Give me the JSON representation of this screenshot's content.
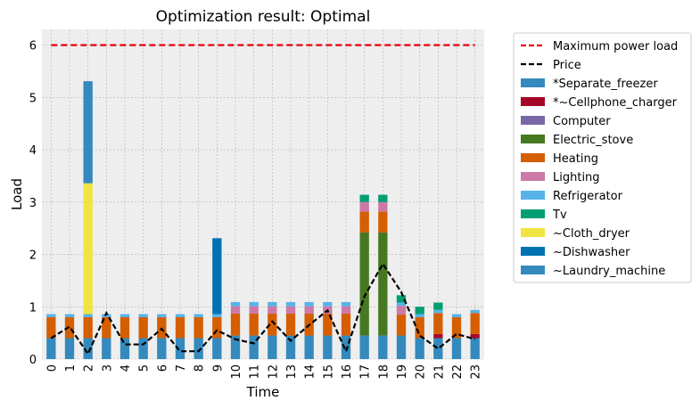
{
  "chart_data": {
    "type": "bar",
    "stacked": true,
    "title": "Optimization result: Optimal",
    "xlabel": "Time",
    "ylabel": "Load",
    "ylim": [
      0,
      6.3
    ],
    "yticks": [
      0,
      1,
      2,
      3,
      4,
      5,
      6
    ],
    "grid": true,
    "legend_position": "outside-right",
    "categories": [
      "0",
      "1",
      "2",
      "3",
      "4",
      "5",
      "6",
      "7",
      "8",
      "9",
      "10",
      "11",
      "12",
      "13",
      "14",
      "15",
      "16",
      "17",
      "18",
      "19",
      "20",
      "21",
      "22",
      "23"
    ],
    "series": [
      {
        "name": "*Separate_freezer",
        "color": "#348abd",
        "values": [
          0.4,
          0.4,
          0.4,
          0.4,
          0.4,
          0.4,
          0.4,
          0.4,
          0.4,
          0.4,
          0.45,
          0.45,
          0.45,
          0.45,
          0.45,
          0.45,
          0.45,
          0.45,
          0.45,
          0.45,
          0.4,
          0.4,
          0.4,
          0.4
        ]
      },
      {
        "name": "*~Cellphone_charger",
        "color": "#a60628",
        "values": [
          0,
          0,
          0,
          0,
          0,
          0,
          0,
          0,
          0,
          0,
          0,
          0,
          0,
          0,
          0,
          0,
          0,
          0,
          0,
          0,
          0,
          0.08,
          0,
          0.08
        ]
      },
      {
        "name": "Computer",
        "color": "#7a68a6",
        "values": [
          0,
          0,
          0,
          0,
          0,
          0,
          0,
          0,
          0,
          0,
          0,
          0,
          0,
          0,
          0,
          0,
          0,
          0,
          0,
          0,
          0,
          0,
          0,
          0
        ]
      },
      {
        "name": "Electric_stove",
        "color": "#467821",
        "values": [
          0,
          0,
          0,
          0,
          0,
          0,
          0,
          0,
          0,
          0,
          0,
          0,
          0,
          0,
          0,
          0,
          0,
          1.97,
          1.97,
          0,
          0,
          0,
          0,
          0
        ]
      },
      {
        "name": "Heating",
        "color": "#d55e00",
        "values": [
          0.4,
          0.4,
          0.4,
          0.4,
          0.4,
          0.4,
          0.4,
          0.4,
          0.4,
          0.4,
          0.42,
          0.42,
          0.42,
          0.42,
          0.42,
          0.42,
          0.42,
          0.4,
          0.4,
          0.4,
          0.4,
          0.4,
          0.4,
          0.4
        ]
      },
      {
        "name": "Lighting",
        "color": "#cc79a7",
        "values": [
          0,
          0,
          0,
          0,
          0,
          0,
          0,
          0,
          0,
          0,
          0.14,
          0.14,
          0.14,
          0.14,
          0.14,
          0.14,
          0.14,
          0.18,
          0.18,
          0.17,
          0,
          0,
          0,
          0
        ]
      },
      {
        "name": "Refrigerator",
        "color": "#56b4e9",
        "values": [
          0.06,
          0.06,
          0.06,
          0.06,
          0.06,
          0.06,
          0.06,
          0.06,
          0.06,
          0.06,
          0.08,
          0.08,
          0.08,
          0.08,
          0.08,
          0.08,
          0.08,
          0,
          0,
          0.06,
          0.06,
          0.06,
          0.06,
          0.06
        ]
      },
      {
        "name": "Tv",
        "color": "#009e73",
        "values": [
          0,
          0,
          0,
          0,
          0,
          0,
          0,
          0,
          0,
          0,
          0,
          0,
          0,
          0,
          0,
          0,
          0,
          0.14,
          0.14,
          0.14,
          0.14,
          0.14,
          0,
          0
        ]
      },
      {
        "name": "~Cloth_dryer",
        "color": "#f0e442",
        "values": [
          0,
          0,
          2.5,
          0,
          0,
          0,
          0,
          0,
          0,
          0,
          0,
          0,
          0,
          0,
          0,
          0,
          0,
          0,
          0,
          0,
          0,
          0,
          0,
          0
        ]
      },
      {
        "name": "~Dishwasher",
        "color": "#0072b2",
        "values": [
          0,
          0,
          0,
          0,
          0,
          0,
          0,
          0,
          0,
          1.45,
          0,
          0,
          0,
          0,
          0,
          0,
          0,
          0,
          0,
          0,
          0,
          0,
          0,
          0
        ]
      },
      {
        "name": "~Laundry_machine",
        "color": "#348abd",
        "values": [
          0,
          0,
          1.95,
          0,
          0,
          0,
          0,
          0,
          0,
          0,
          0,
          0,
          0,
          0,
          0,
          0,
          0,
          0,
          0,
          0,
          0,
          0,
          0,
          0
        ]
      }
    ],
    "lines": [
      {
        "name": "Maximum power load",
        "color": "#e8000b",
        "style": "dashed",
        "values": [
          6,
          6,
          6,
          6,
          6,
          6,
          6,
          6,
          6,
          6,
          6,
          6,
          6,
          6,
          6,
          6,
          6,
          6,
          6,
          6,
          6,
          6,
          6,
          6
        ]
      },
      {
        "name": "Price",
        "color": "#000000",
        "style": "dashed",
        "values": [
          0.4,
          0.62,
          0.1,
          0.88,
          0.28,
          0.28,
          0.58,
          0.15,
          0.15,
          0.55,
          0.38,
          0.3,
          0.72,
          0.35,
          0.65,
          0.93,
          0.15,
          1.2,
          1.82,
          1.28,
          0.45,
          0.2,
          0.48,
          0.38
        ]
      }
    ],
    "legend": [
      "Maximum power load",
      "Price",
      "*Separate_freezer",
      "*~Cellphone_charger",
      "Computer",
      "Electric_stove",
      "Heating",
      "Lighting",
      "Refrigerator",
      "Tv",
      "~Cloth_dryer",
      "~Dishwasher",
      "~Laundry_machine"
    ]
  }
}
